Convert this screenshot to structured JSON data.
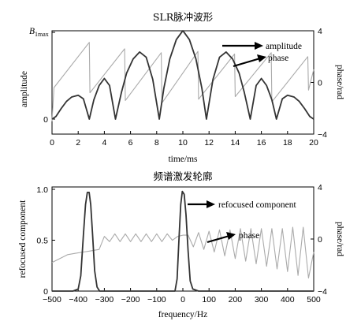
{
  "chart_data": [
    {
      "type": "line",
      "title": "SLR脉冲波形",
      "xlabel": "time/ms",
      "ylabel_left": "amplitude",
      "ylabel_right": "phase/rad",
      "xlim": [
        0,
        20
      ],
      "y_left_lim": [
        0,
        1
      ],
      "y_right_lim": [
        -4,
        4
      ],
      "x_ticks": [
        "0",
        "2",
        "4",
        "6",
        "8",
        "10",
        "12",
        "14",
        "16",
        "18",
        "20"
      ],
      "y_left_ticks": [
        "0"
      ],
      "y_left_top_label": "B",
      "y_left_top_label_sub": "1max",
      "y_right_ticks": [
        "4",
        "0",
        "−4"
      ],
      "series": [
        {
          "name": "amplitude",
          "color": "#333333",
          "x": [
            0,
            0.3,
            0.7,
            1.1,
            1.5,
            2.0,
            2.4,
            2.85,
            3.2,
            3.6,
            4.0,
            4.4,
            4.85,
            5.3,
            5.7,
            6.2,
            6.7,
            7.2,
            7.7,
            8.2,
            8.55,
            9.0,
            9.5,
            9.9,
            10.0,
            10.1,
            10.5,
            11.0,
            11.45,
            11.8,
            12.3,
            12.8,
            13.3,
            13.8,
            14.3,
            14.7,
            15.15,
            15.6,
            16.0,
            16.4,
            16.8,
            17.15,
            17.6,
            18.0,
            18.5,
            18.9,
            19.3,
            19.7,
            20.0
          ],
          "values": [
            0.0,
            0.03,
            0.12,
            0.2,
            0.25,
            0.27,
            0.23,
            0.0,
            0.22,
            0.38,
            0.46,
            0.38,
            0.0,
            0.3,
            0.52,
            0.68,
            0.76,
            0.7,
            0.45,
            0.0,
            0.35,
            0.68,
            0.9,
            0.98,
            1.0,
            0.98,
            0.9,
            0.68,
            0.35,
            0.0,
            0.45,
            0.7,
            0.76,
            0.68,
            0.52,
            0.3,
            0.0,
            0.38,
            0.46,
            0.38,
            0.22,
            0.0,
            0.23,
            0.27,
            0.25,
            0.2,
            0.12,
            0.03,
            0.0
          ]
        },
        {
          "name": "phase",
          "color": "#aaaaaa",
          "axis": "right",
          "x": [
            0,
            0.15,
            2.85,
            2.9,
            5.55,
            5.6,
            8.35,
            8.4,
            11.15,
            11.2,
            13.95,
            14.0,
            16.75,
            16.8,
            19.55,
            19.6,
            20.0
          ],
          "values": [
            -3.0,
            -0.4,
            3.1,
            -0.8,
            2.6,
            -1.4,
            2.3,
            -1.6,
            2.4,
            -1.3,
            2.2,
            -1.1,
            2.3,
            -1.5,
            2.0,
            -0.6,
            1.0
          ]
        }
      ],
      "annotations": [
        "amplitude",
        "phase"
      ]
    },
    {
      "type": "line",
      "title": "频谱激发轮廓",
      "xlabel": "frequency/Hz",
      "ylabel_left": "refocused component",
      "ylabel_right": "phase/rad",
      "xlim": [
        -500,
        500
      ],
      "y_left_lim": [
        0,
        1
      ],
      "y_right_lim": [
        -4,
        4
      ],
      "x_ticks": [
        "−500",
        "−400",
        "−300",
        "−200",
        "−100",
        "0",
        "100",
        "200",
        "300",
        "400",
        "500"
      ],
      "y_left_ticks": [
        "0",
        "0.5",
        "1.0"
      ],
      "y_right_ticks": [
        "4",
        "0",
        "−4"
      ],
      "series": [
        {
          "name": "refocused component",
          "color": "#333333",
          "x": [
            -500,
            -420,
            -400,
            -390,
            -380,
            -372,
            -365,
            -358,
            -352,
            -345,
            -337,
            -328,
            -318,
            -300,
            -200,
            -100,
            -30,
            -22,
            -15,
            -8,
            -2,
            5,
            12,
            20,
            28,
            38,
            60,
            200,
            400,
            500
          ],
          "values": [
            0.0,
            0.0,
            0.02,
            0.15,
            0.55,
            0.85,
            0.97,
            0.97,
            0.85,
            0.55,
            0.2,
            0.04,
            0.0,
            0.0,
            0.0,
            0.0,
            0.0,
            0.12,
            0.5,
            0.85,
            0.98,
            0.95,
            0.75,
            0.4,
            0.1,
            0.02,
            0.0,
            0.0,
            0.0,
            0.0
          ]
        },
        {
          "name": "phase",
          "color": "#aaaaaa",
          "axis": "right",
          "x": [
            -500,
            -470,
            -440,
            -410,
            -380,
            -350,
            -320,
            -300,
            -280,
            -260,
            -240,
            -220,
            -200,
            -180,
            -160,
            -140,
            -120,
            -100,
            -80,
            -60,
            -40,
            -20,
            0,
            20,
            40,
            60,
            80,
            100,
            120,
            140,
            160,
            180,
            200,
            220,
            240,
            260,
            280,
            300,
            320,
            340,
            360,
            380,
            400,
            420,
            440,
            460,
            480,
            500
          ],
          "values": [
            -1.8,
            -1.5,
            -1.2,
            -1.1,
            -1.0,
            -0.9,
            -0.8,
            0.2,
            -0.2,
            0.4,
            -0.2,
            0.4,
            -0.2,
            0.4,
            -0.2,
            0.4,
            -0.2,
            0.4,
            -0.2,
            0.4,
            -0.1,
            0.2,
            0.3,
            0.3,
            -0.6,
            0.5,
            -0.8,
            0.6,
            -1.0,
            0.7,
            -1.3,
            0.7,
            -1.5,
            0.8,
            -1.7,
            0.8,
            -1.9,
            0.8,
            -2.1,
            0.8,
            -2.3,
            0.8,
            -2.5,
            0.9,
            -2.8,
            0.9,
            -3.0,
            -1.0
          ]
        }
      ],
      "annotations": [
        "refocused component",
        "phase"
      ]
    }
  ]
}
